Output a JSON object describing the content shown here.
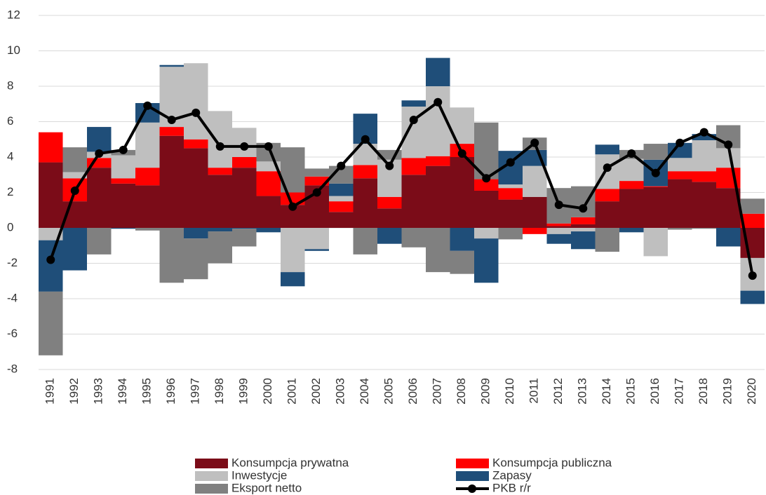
{
  "chart_data": {
    "type": "bar",
    "stacked": true,
    "categories": [
      "1991",
      "1992",
      "1993",
      "1994",
      "1995",
      "1996",
      "1997",
      "1998",
      "1999",
      "2000",
      "2001",
      "2002",
      "2003",
      "2004",
      "2005",
      "2006",
      "2007",
      "2008",
      "2009",
      "2010",
      "2011",
      "2012",
      "2013",
      "2014",
      "2015",
      "2016",
      "2017",
      "2018",
      "2019",
      "2020"
    ],
    "series": [
      {
        "name": "Konsumpcja prywatna",
        "color": "#7b0c18",
        "values": [
          3.7,
          1.5,
          3.4,
          2.5,
          2.4,
          5.2,
          4.5,
          3.0,
          3.4,
          1.8,
          1.3,
          2.4,
          0.9,
          2.8,
          1.1,
          3.0,
          3.5,
          4.0,
          2.1,
          1.6,
          1.75,
          0.1,
          0.2,
          1.5,
          2.2,
          2.3,
          2.75,
          2.6,
          2.25,
          -1.7
        ]
      },
      {
        "name": "Konsumpcja publiczna",
        "color": "#ff0000",
        "values": [
          1.7,
          1.3,
          0.55,
          0.3,
          1.0,
          0.5,
          0.5,
          0.4,
          0.6,
          1.4,
          0.7,
          0.5,
          0.6,
          0.75,
          0.65,
          0.95,
          0.55,
          0.75,
          0.65,
          0.65,
          -0.35,
          0.15,
          0.4,
          0.7,
          0.45,
          0.05,
          0.45,
          0.6,
          1.15,
          0.8
        ]
      },
      {
        "name": "Inwestycje",
        "color": "#bfbfbf",
        "values": [
          -0.7,
          0.35,
          0.35,
          1.3,
          2.55,
          3.4,
          4.3,
          3.2,
          1.65,
          0.55,
          -2.5,
          -1.2,
          0.3,
          1.2,
          2.1,
          2.9,
          3.95,
          2.05,
          -0.6,
          0.2,
          1.75,
          -0.35,
          -0.2,
          1.95,
          1.25,
          -1.6,
          0.75,
          1.75,
          1.1,
          -1.85
        ]
      },
      {
        "name": "Zapasy",
        "color": "#1f4e79",
        "values": [
          -2.9,
          -2.4,
          1.4,
          -0.05,
          1.1,
          0.1,
          -0.6,
          -0.2,
          -0.05,
          -0.25,
          -0.8,
          -0.1,
          0.7,
          1.7,
          -0.9,
          0.35,
          1.6,
          -1.3,
          -2.5,
          1.9,
          0.9,
          -0.55,
          -1.0,
          0.55,
          -0.25,
          1.5,
          0.85,
          0.35,
          -1.05,
          -0.75
        ]
      },
      {
        "name": "Eksport netto",
        "color": "#808080",
        "values": [
          -3.6,
          1.4,
          -1.5,
          0.3,
          -0.15,
          -3.1,
          -2.3,
          -1.8,
          -1.0,
          1.05,
          2.55,
          0.45,
          1.0,
          -1.5,
          0.55,
          -1.1,
          -2.5,
          -1.3,
          3.2,
          -0.65,
          0.7,
          2.0,
          1.75,
          -1.35,
          0.5,
          0.9,
          -0.1,
          -0.05,
          1.3,
          0.85
        ]
      },
      {
        "name": "PKB r/r",
        "type": "line",
        "color": "#000000",
        "values": [
          -1.8,
          2.1,
          4.2,
          4.4,
          6.9,
          6.1,
          6.5,
          4.6,
          4.6,
          4.6,
          1.2,
          2.0,
          3.5,
          5.0,
          3.5,
          6.1,
          7.1,
          4.2,
          2.8,
          3.7,
          4.8,
          1.3,
          1.1,
          3.4,
          4.2,
          3.1,
          4.8,
          5.4,
          4.7,
          -2.7
        ]
      }
    ],
    "ylim": [
      -8,
      12
    ],
    "yticks": [
      -8,
      -6,
      -4,
      -2,
      0,
      2,
      4,
      6,
      8,
      10,
      12
    ],
    "grid": true,
    "legend": "bottom"
  }
}
